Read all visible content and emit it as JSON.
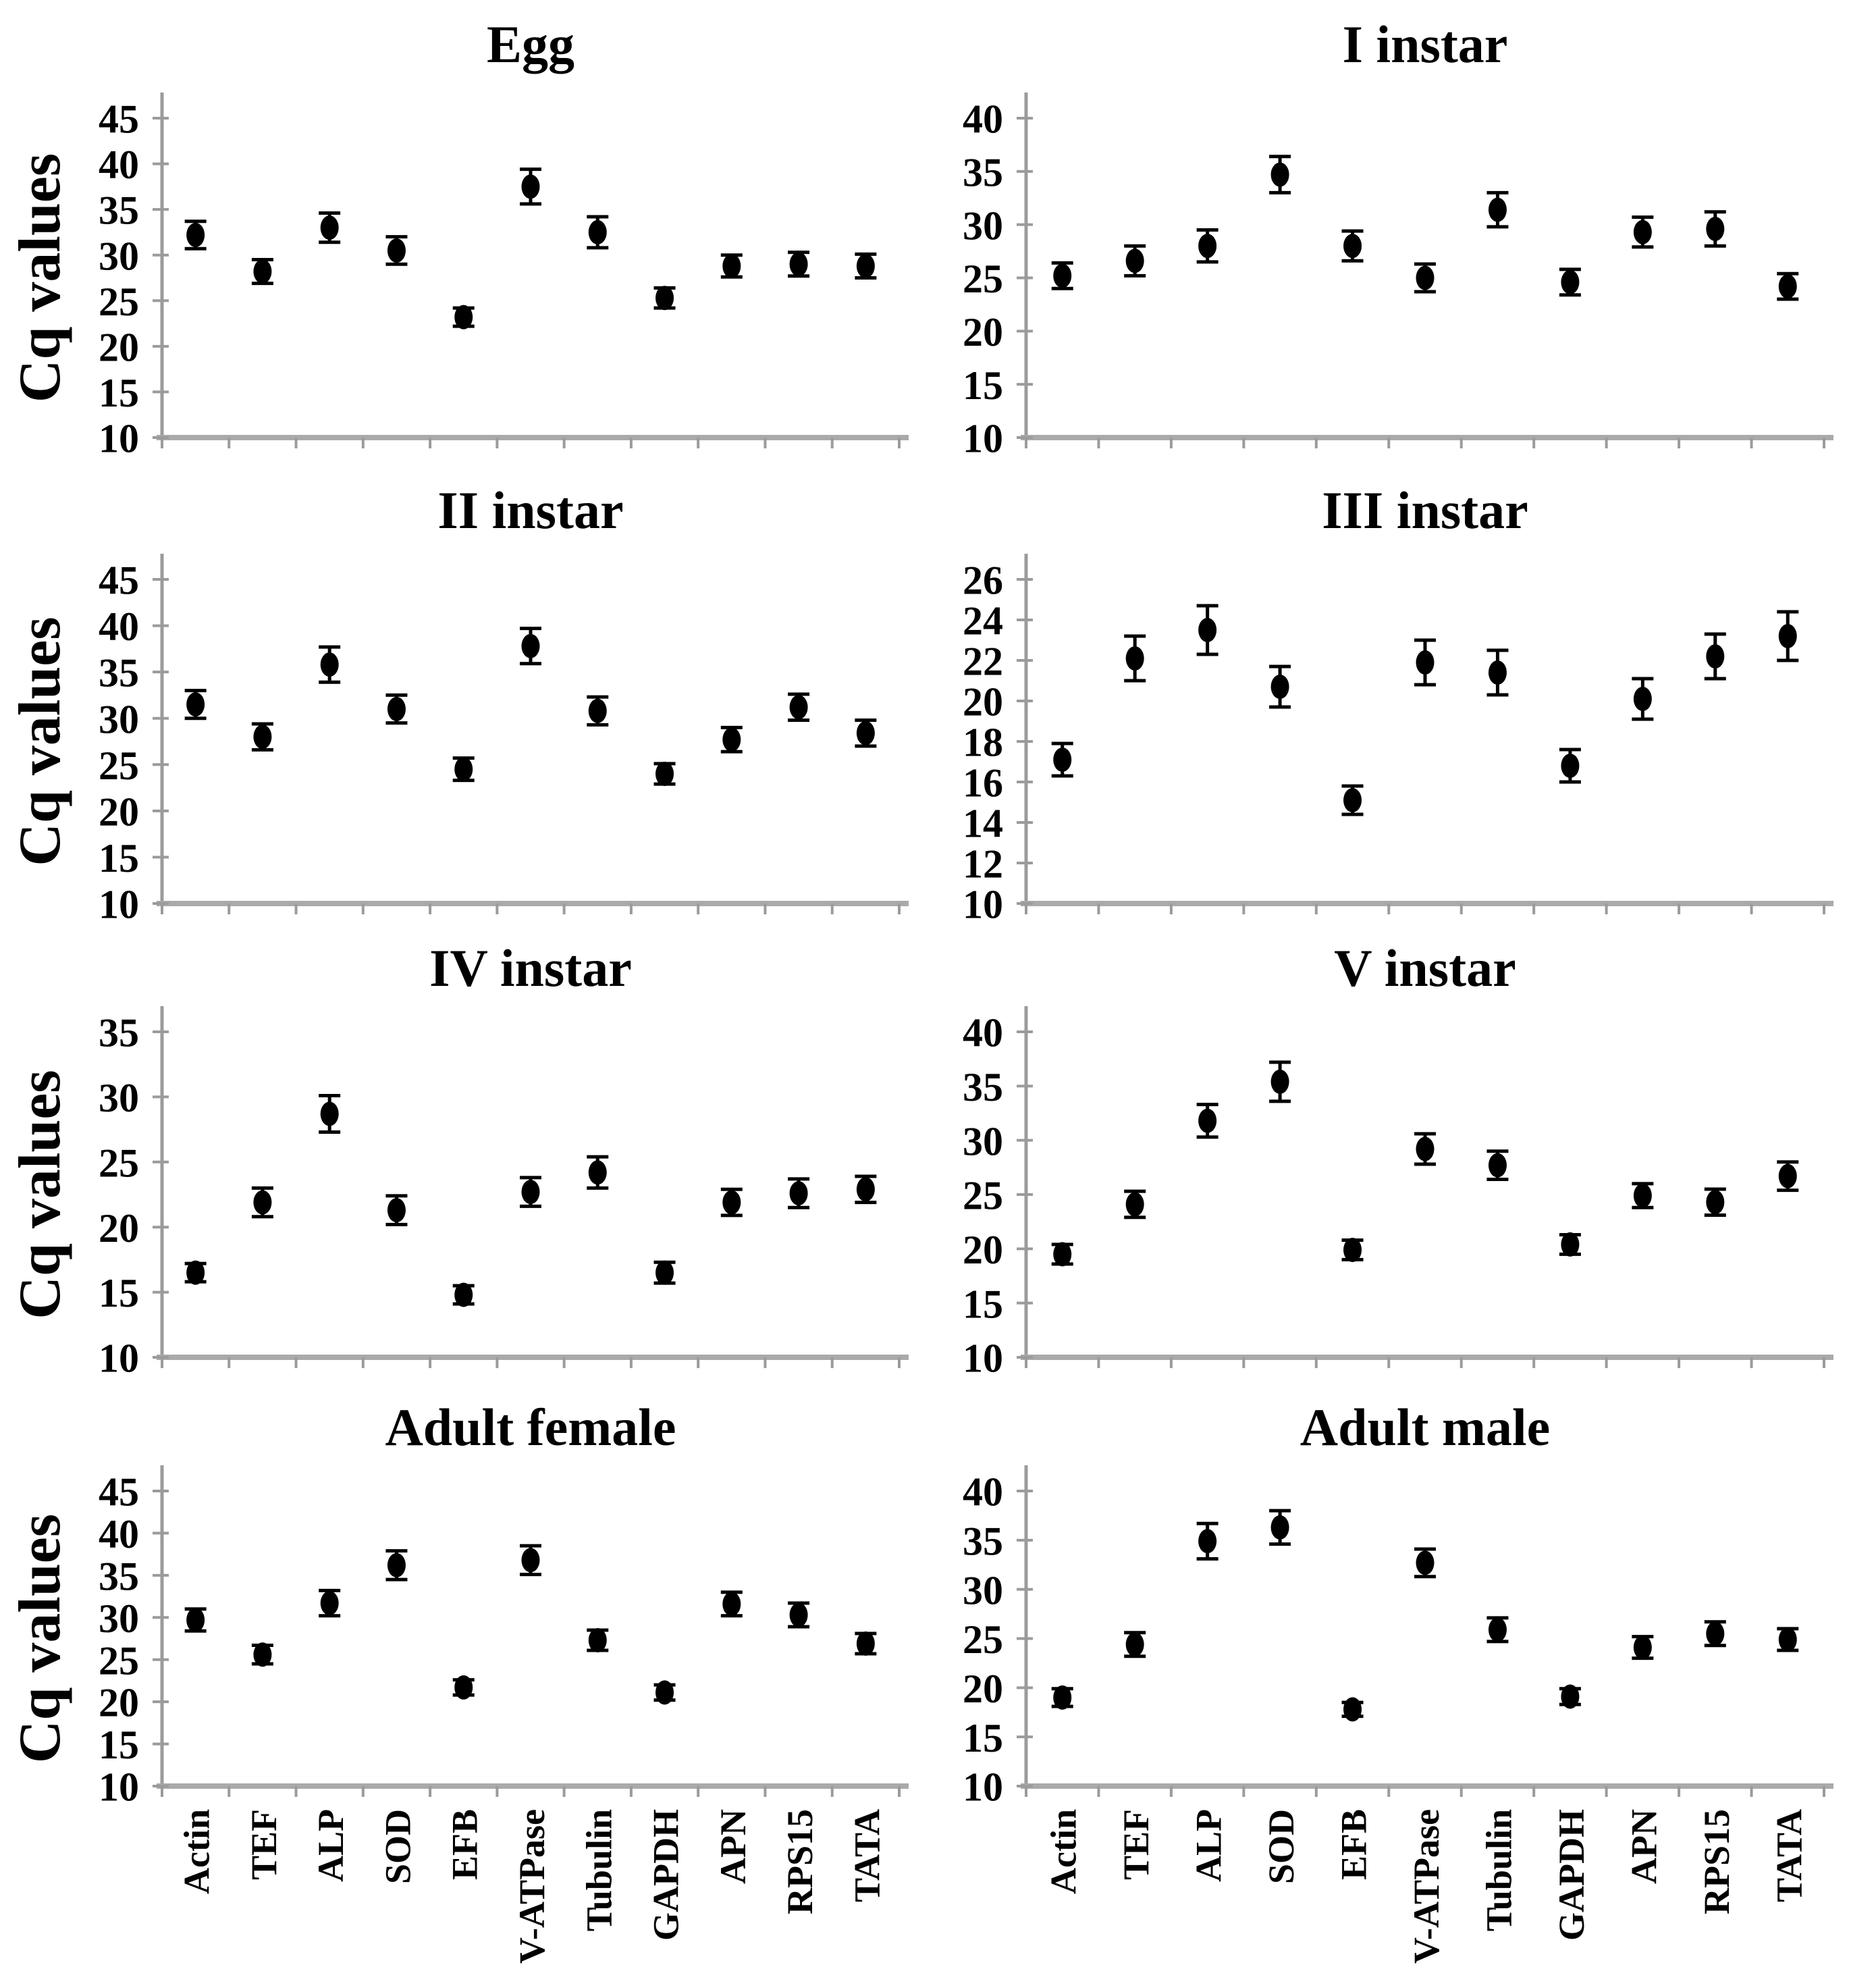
{
  "figure": {
    "ylabel": "Cq values",
    "marker_color": "#000000",
    "axis_color": "#9b9b9b",
    "baseline_color": "#aaaaaa",
    "text_color": "#000000",
    "background_color": "#ffffff"
  },
  "chart_data": {
    "type": "scatter",
    "legend": "none",
    "grid": false,
    "error_bars": true,
    "shared_categories": [
      "Actin",
      "TEF",
      "ALP",
      "SOD",
      "EFB",
      "V-ATPase",
      "Tubulin",
      "GAPDH",
      "APN",
      "RPS15",
      "TATA"
    ],
    "ylabel_left_column": "Cq values",
    "panels": [
      {
        "title": "Egg",
        "ylim": [
          10,
          45
        ],
        "ystep": 5,
        "show_ylabel": true,
        "show_xlabels": false,
        "values": [
          32.2,
          28.2,
          33.0,
          30.5,
          23.2,
          37.5,
          32.5,
          25.3,
          28.8,
          29.0,
          28.8
        ],
        "errors": [
          1.5,
          1.3,
          1.6,
          1.5,
          1.0,
          1.9,
          1.7,
          1.1,
          1.2,
          1.3,
          1.3
        ]
      },
      {
        "title": "I instar",
        "ylim": [
          10,
          40
        ],
        "ystep": 5,
        "show_ylabel": false,
        "show_xlabels": false,
        "values": [
          25.2,
          26.6,
          28.0,
          34.7,
          28.0,
          25.0,
          31.4,
          24.6,
          29.3,
          29.6,
          24.2
        ],
        "errors": [
          1.2,
          1.4,
          1.5,
          1.7,
          1.4,
          1.3,
          1.6,
          1.2,
          1.4,
          1.6,
          1.2
        ]
      },
      {
        "title": "II instar",
        "ylim": [
          10,
          45
        ],
        "ystep": 5,
        "show_ylabel": true,
        "show_xlabels": false,
        "values": [
          31.5,
          28.0,
          35.8,
          31.0,
          24.5,
          37.8,
          30.8,
          24.0,
          27.7,
          31.2,
          28.4
        ],
        "errors": [
          1.5,
          1.4,
          1.9,
          1.5,
          1.2,
          1.9,
          1.5,
          1.1,
          1.3,
          1.4,
          1.4
        ]
      },
      {
        "title": "III instar",
        "ylim": [
          10,
          26
        ],
        "ystep": 2,
        "show_ylabel": false,
        "show_xlabels": false,
        "values": [
          17.1,
          22.1,
          23.5,
          20.7,
          15.1,
          21.9,
          21.4,
          16.8,
          20.1,
          22.2,
          23.2
        ],
        "errors": [
          0.8,
          1.1,
          1.2,
          1.0,
          0.7,
          1.1,
          1.1,
          0.8,
          1.0,
          1.1,
          1.2
        ]
      },
      {
        "title": "IV instar",
        "ylim": [
          10,
          35
        ],
        "ystep": 5,
        "show_ylabel": true,
        "show_xlabels": false,
        "values": [
          16.5,
          21.9,
          28.7,
          21.3,
          14.8,
          22.7,
          24.2,
          16.5,
          21.9,
          22.6,
          22.9
        ],
        "errors": [
          0.7,
          1.1,
          1.4,
          1.1,
          0.7,
          1.1,
          1.2,
          0.8,
          1.0,
          1.1,
          1.0
        ]
      },
      {
        "title": "V instar",
        "ylim": [
          10,
          40
        ],
        "ystep": 5,
        "show_ylabel": false,
        "show_xlabels": false,
        "values": [
          19.5,
          24.1,
          31.8,
          35.4,
          19.9,
          29.2,
          27.7,
          20.4,
          24.9,
          24.3,
          26.7
        ],
        "errors": [
          0.9,
          1.2,
          1.5,
          1.8,
          0.9,
          1.4,
          1.3,
          0.9,
          1.1,
          1.2,
          1.3
        ]
      },
      {
        "title": "Adult female",
        "ylim": [
          10,
          45
        ],
        "ystep": 5,
        "show_ylabel": true,
        "show_xlabels": true,
        "values": [
          29.7,
          25.6,
          31.7,
          36.2,
          21.7,
          36.8,
          27.3,
          21.1,
          31.6,
          30.3,
          26.9
        ],
        "errors": [
          1.3,
          1.1,
          1.5,
          1.7,
          0.9,
          1.7,
          1.2,
          0.9,
          1.4,
          1.4,
          1.2
        ]
      },
      {
        "title": "Adult male",
        "ylim": [
          10,
          40
        ],
        "ystep": 5,
        "show_ylabel": false,
        "show_xlabels": true,
        "values": [
          19.0,
          24.4,
          34.9,
          36.3,
          17.8,
          32.7,
          25.9,
          19.1,
          24.1,
          25.5,
          24.9
        ],
        "errors": [
          0.9,
          1.2,
          1.8,
          1.7,
          0.7,
          1.4,
          1.2,
          0.8,
          1.1,
          1.2,
          1.1
        ]
      }
    ]
  }
}
